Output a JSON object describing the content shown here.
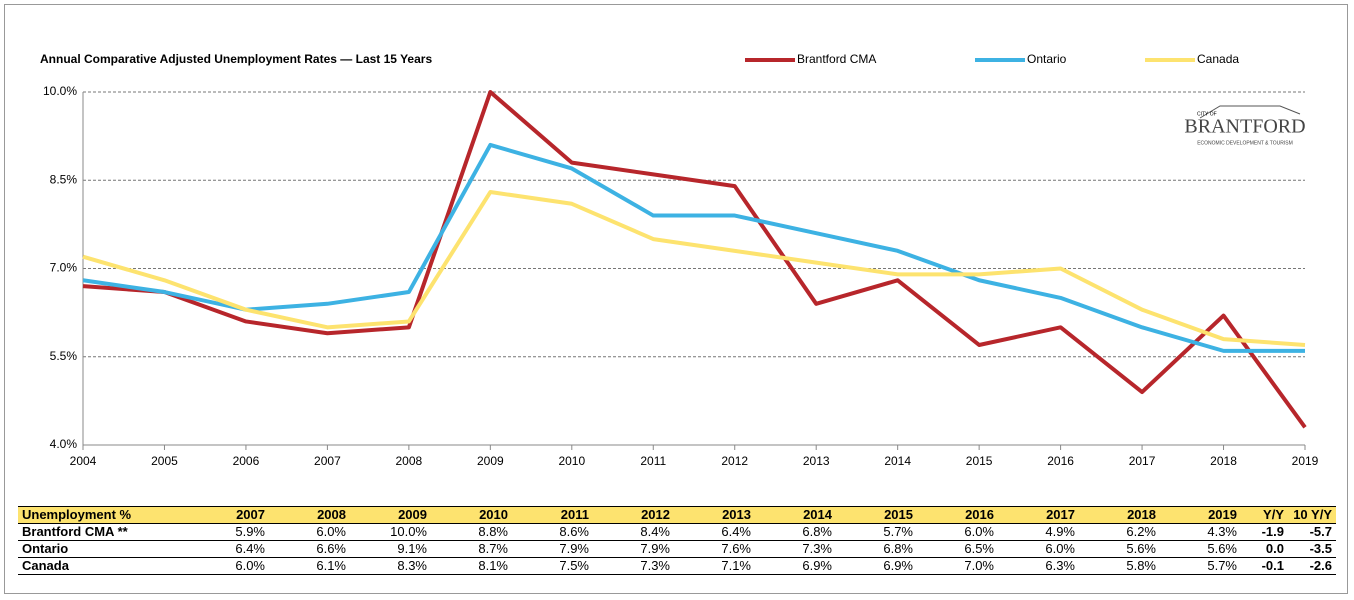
{
  "chart_data": {
    "type": "line",
    "title": "Annual Comparative Adjusted Unemployment Rates  —  Last 15 Years",
    "categories": [
      "2004",
      "2005",
      "2006",
      "2007",
      "2008",
      "2009",
      "2010",
      "2011",
      "2012",
      "2013",
      "2014",
      "2015",
      "2016",
      "2017",
      "2018",
      "2019"
    ],
    "series": [
      {
        "name": "Brantford CMA",
        "color": "#b7262b",
        "values": [
          6.7,
          6.6,
          6.1,
          5.9,
          6.0,
          10.0,
          8.8,
          8.6,
          8.4,
          6.4,
          6.8,
          5.7,
          6.0,
          4.9,
          6.2,
          4.3
        ]
      },
      {
        "name": "Ontario",
        "color": "#3db2e3",
        "values": [
          6.8,
          6.6,
          6.3,
          6.4,
          6.6,
          9.1,
          8.7,
          7.9,
          7.9,
          7.6,
          7.3,
          6.8,
          6.5,
          6.0,
          5.6,
          5.6
        ]
      },
      {
        "name": "Canada",
        "color": "#fde36f",
        "values": [
          7.2,
          6.8,
          6.3,
          6.0,
          6.1,
          8.3,
          8.1,
          7.5,
          7.3,
          7.1,
          6.9,
          6.9,
          7.0,
          6.3,
          5.8,
          5.7
        ]
      }
    ],
    "ylim": [
      4.0,
      10.0
    ],
    "yticks": [
      {
        "value": 4.0,
        "label": "4.0%"
      },
      {
        "value": 5.5,
        "label": "5.5%"
      },
      {
        "value": 7.0,
        "label": "7.0%"
      },
      {
        "value": 8.5,
        "label": "8.5%"
      },
      {
        "value": 10.0,
        "label": "10.0%"
      }
    ],
    "grid": true,
    "legend": "top"
  },
  "logo": {
    "top": "CITY OF",
    "name": "BRANTFORD",
    "sub": "ECONOMIC DEVELOPMENT & TOURISM"
  },
  "table": {
    "header": [
      "Unemployment %",
      "2007",
      "2008",
      "2009",
      "2010",
      "2011",
      "2012",
      "2013",
      "2014",
      "2015",
      "2016",
      "2017",
      "2018",
      "2019",
      "Y/Y",
      "10 Y/Y"
    ],
    "rows": [
      [
        "Brantford CMA **",
        "5.9%",
        "6.0%",
        "10.0%",
        "8.8%",
        "8.6%",
        "8.4%",
        "6.4%",
        "6.8%",
        "5.7%",
        "6.0%",
        "4.9%",
        "6.2%",
        "4.3%",
        "-1.9",
        "-5.7"
      ],
      [
        "Ontario",
        "6.4%",
        "6.6%",
        "9.1%",
        "8.7%",
        "7.9%",
        "7.9%",
        "7.6%",
        "7.3%",
        "6.8%",
        "6.5%",
        "6.0%",
        "5.6%",
        "5.6%",
        "0.0",
        "-3.5"
      ],
      [
        "Canada",
        "6.0%",
        "6.1%",
        "8.3%",
        "8.1%",
        "7.5%",
        "7.3%",
        "7.1%",
        "6.9%",
        "6.9%",
        "7.0%",
        "6.3%",
        "5.8%",
        "5.7%",
        "-0.1",
        "-2.6"
      ]
    ]
  }
}
